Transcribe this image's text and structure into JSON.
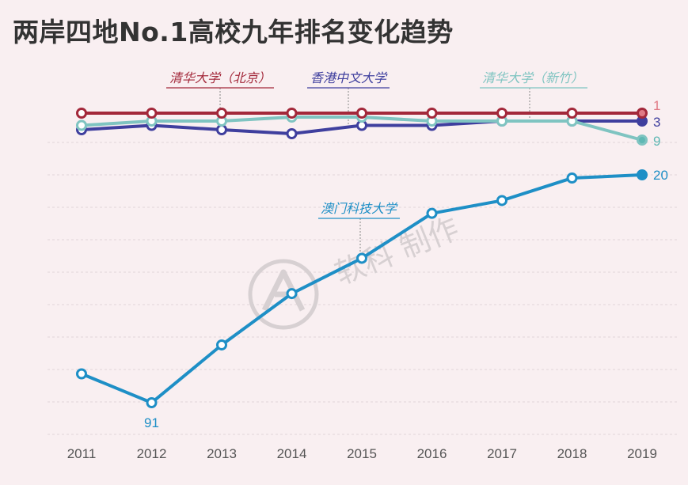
{
  "title": "两岸四地No.1高校九年排名变化趋势",
  "watermark": "软科 制作",
  "chart_data": {
    "type": "line",
    "x": [
      "2011",
      "2012",
      "2013",
      "2014",
      "2015",
      "2016",
      "2017",
      "2018",
      "2019"
    ],
    "y_reversed": true,
    "grid": "horizontal dashed",
    "series": [
      {
        "name": "清华大学（北京）",
        "color": "#a3283a",
        "values": [
          1,
          1,
          1,
          1,
          1,
          1,
          1,
          1,
          1
        ],
        "end_label": "1",
        "end_label_color": "#e07a85"
      },
      {
        "name": "香港中文大学",
        "color": "#3f3f9e",
        "values": [
          5,
          4,
          5,
          6,
          4,
          4,
          3,
          3,
          3
        ],
        "end_label": "3",
        "end_label_color": "#3f3f9e"
      },
      {
        "name": "清华大学（新竹）",
        "color": "#7fc4c1",
        "values": [
          4,
          3,
          3,
          2,
          2,
          3,
          3,
          3,
          9
        ],
        "end_label": "9",
        "end_label_color": "#5fb8b4"
      },
      {
        "name": "澳门科技大学",
        "color": "#1e8fc6",
        "values": [
          82,
          91,
          73,
          57,
          46,
          32,
          28,
          21,
          20
        ],
        "end_label": "20",
        "end_label_color": "#1e8fc6",
        "extra_labels": [
          {
            "index": 1,
            "text": "91"
          }
        ]
      }
    ]
  }
}
